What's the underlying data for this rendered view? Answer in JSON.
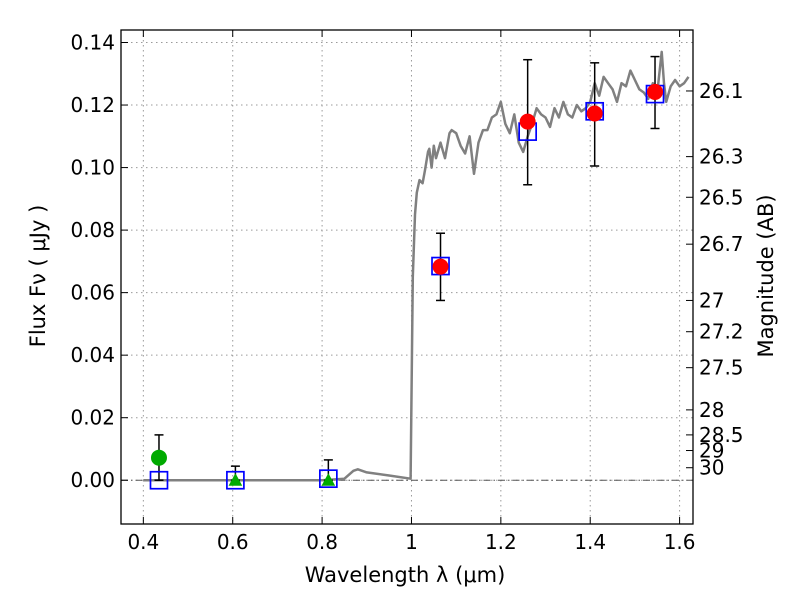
{
  "chart_data": {
    "type": "scatter",
    "xlabel": "Wavelength  λ (μm)",
    "ylabel": "Flux  Fν  ( μJy )",
    "ylabel_right": "Magnitude (AB)",
    "xlim": [
      0.35,
      1.63
    ],
    "ylim": [
      -0.014,
      0.144
    ],
    "x_ticks": [
      0.4,
      0.6,
      0.8,
      1.0,
      1.2,
      1.4,
      1.6
    ],
    "x_tick_labels": [
      "0.4",
      "0.6",
      "0.8",
      "1",
      "1.2",
      "1.4",
      "1.6"
    ],
    "y_ticks": [
      0.0,
      0.02,
      0.04,
      0.06,
      0.08,
      0.1,
      0.12,
      0.14
    ],
    "y_tick_labels": [
      "0.00",
      "0.02",
      "0.04",
      "0.06",
      "0.08",
      "0.10",
      "0.12",
      "0.14"
    ],
    "right_ticks": [
      {
        "label": "26.1",
        "flux": 0.1245
      },
      {
        "label": "26.3",
        "flux": 0.1035
      },
      {
        "label": "26.5",
        "flux": 0.0905
      },
      {
        "label": "26.7",
        "flux": 0.0755
      },
      {
        "label": "27",
        "flux": 0.0575
      },
      {
        "label": "27.2",
        "flux": 0.0475
      },
      {
        "label": "27.5",
        "flux": 0.036
      },
      {
        "label": "28",
        "flux": 0.0225
      },
      {
        "label": "28.5",
        "flux": 0.0145
      },
      {
        "label": "29",
        "flux": 0.0095
      },
      {
        "label": "30",
        "flux": 0.004
      }
    ],
    "grid": true,
    "colors": {
      "model_line": "#808080",
      "observed_red": "#ff0000",
      "observed_green": "#00aa00",
      "model_box": "#0000ff",
      "error_bar": "#000000",
      "zero_line": "#555555"
    },
    "series": [
      {
        "name": "model_spectrum",
        "kind": "line",
        "x": [
          0.4,
          0.5,
          0.6,
          0.7,
          0.8,
          0.85,
          0.87,
          0.88,
          0.9,
          0.95,
          0.998,
          1.003,
          1.008,
          1.012,
          1.018,
          1.025,
          1.03,
          1.037,
          1.04,
          1.045,
          1.05,
          1.055,
          1.065,
          1.075,
          1.085,
          1.09,
          1.1,
          1.11,
          1.12,
          1.13,
          1.14,
          1.15,
          1.16,
          1.17,
          1.18,
          1.19,
          1.2,
          1.21,
          1.22,
          1.23,
          1.24,
          1.25,
          1.26,
          1.27,
          1.28,
          1.29,
          1.3,
          1.31,
          1.32,
          1.33,
          1.34,
          1.35,
          1.36,
          1.37,
          1.38,
          1.39,
          1.4,
          1.41,
          1.42,
          1.43,
          1.44,
          1.45,
          1.46,
          1.47,
          1.48,
          1.49,
          1.5,
          1.51,
          1.52,
          1.53,
          1.54,
          1.55,
          1.56,
          1.565,
          1.57,
          1.58,
          1.59,
          1.6,
          1.61,
          1.62
        ],
        "y": [
          0.0,
          0.0,
          0.0,
          0.0,
          0.0,
          0.0005,
          0.003,
          0.0035,
          0.0025,
          0.0015,
          0.0005,
          0.065,
          0.085,
          0.092,
          0.096,
          0.095,
          0.099,
          0.105,
          0.106,
          0.1,
          0.107,
          0.103,
          0.108,
          0.103,
          0.111,
          0.112,
          0.111,
          0.107,
          0.1045,
          0.11,
          0.098,
          0.108,
          0.112,
          0.112,
          0.116,
          0.117,
          0.121,
          0.114,
          0.111,
          0.117,
          0.108,
          0.105,
          0.11,
          0.114,
          0.119,
          0.117,
          0.116,
          0.113,
          0.119,
          0.116,
          0.121,
          0.117,
          0.116,
          0.12,
          0.118,
          0.119,
          0.121,
          0.127,
          0.123,
          0.129,
          0.127,
          0.125,
          0.121,
          0.127,
          0.126,
          0.131,
          0.128,
          0.125,
          0.124,
          0.122,
          0.127,
          0.124,
          0.137,
          0.127,
          0.121,
          0.126,
          0.128,
          0.126,
          0.127,
          0.129
        ]
      },
      {
        "name": "model_photometry",
        "kind": "open_square",
        "x": [
          0.435,
          0.606,
          0.814,
          1.065,
          1.26,
          1.41,
          1.545
        ],
        "y": [
          0.0,
          0.0,
          0.0005,
          0.0685,
          0.1115,
          0.118,
          0.1235
        ]
      },
      {
        "name": "observed_detections",
        "kind": "filled_circle",
        "x": [
          0.435,
          1.065,
          1.26,
          1.41,
          1.545
        ],
        "y": [
          0.0072,
          0.0683,
          0.1147,
          0.1173,
          0.1242
        ],
        "color_keys": [
          "observed_green",
          "observed_red",
          "observed_red",
          "observed_red",
          "observed_red"
        ]
      },
      {
        "name": "observed_upper_limits",
        "kind": "filled_triangle",
        "x": [
          0.606,
          0.814
        ],
        "y": [
          0.0,
          0.0
        ]
      },
      {
        "name": "error_bars",
        "kind": "errorbar",
        "x": [
          0.435,
          0.606,
          0.814,
          1.065,
          1.26,
          1.41,
          1.545
        ],
        "low": [
          0.0,
          0.0,
          0.0,
          0.0575,
          0.0945,
          0.1005,
          0.1125
        ],
        "high": [
          0.0145,
          0.0045,
          0.0065,
          0.079,
          0.1345,
          0.1335,
          0.1355
        ]
      }
    ]
  }
}
